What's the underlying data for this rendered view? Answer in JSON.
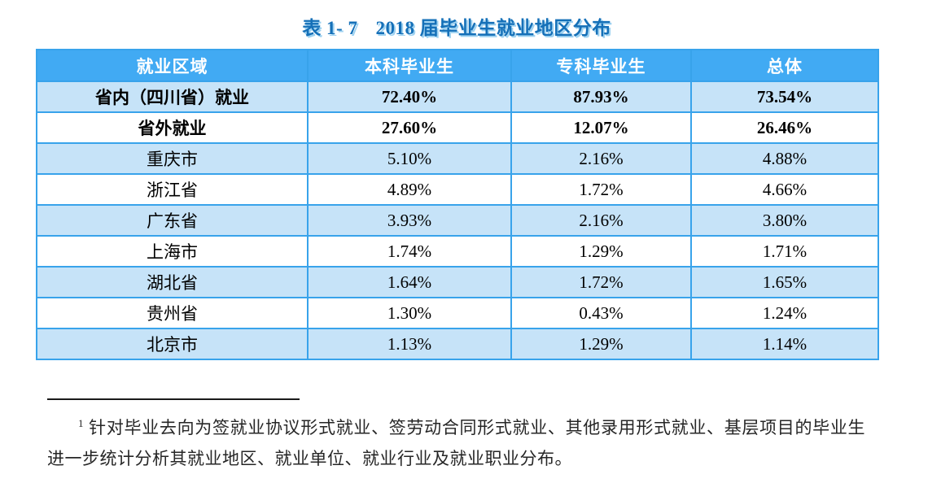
{
  "title": {
    "label": "表 1- 7",
    "text": "2018 届毕业生就业地区分布"
  },
  "table": {
    "headers": [
      "就业区域",
      "本科毕业生",
      "专科毕业生",
      "总体"
    ],
    "rows": [
      {
        "cells": [
          "省内（四川省）就业",
          "72.40%",
          "87.93%",
          "73.54%"
        ],
        "emphasis": true
      },
      {
        "cells": [
          "省外就业",
          "27.60%",
          "12.07%",
          "26.46%"
        ],
        "emphasis": true
      },
      {
        "cells": [
          "重庆市",
          "5.10%",
          "2.16%",
          "4.88%"
        ],
        "emphasis": false
      },
      {
        "cells": [
          "浙江省",
          "4.89%",
          "1.72%",
          "4.66%"
        ],
        "emphasis": false
      },
      {
        "cells": [
          "广东省",
          "3.93%",
          "2.16%",
          "3.80%"
        ],
        "emphasis": false
      },
      {
        "cells": [
          "上海市",
          "1.74%",
          "1.29%",
          "1.71%"
        ],
        "emphasis": false
      },
      {
        "cells": [
          "湖北省",
          "1.64%",
          "1.72%",
          "1.65%"
        ],
        "emphasis": false
      },
      {
        "cells": [
          "贵州省",
          "1.30%",
          "0.43%",
          "1.24%"
        ],
        "emphasis": false
      },
      {
        "cells": [
          "北京市",
          "1.13%",
          "1.29%",
          "1.14%"
        ],
        "emphasis": false
      }
    ]
  },
  "footnote": {
    "marker": "1",
    "text": "针对毕业去向为签就业协议形式就业、签劳动合同形式就业、其他录用形式就业、基层项目的毕业生进一步统计分析其就业地区、就业单位、就业行业及就业职业分布。"
  },
  "colors": {
    "header_bg": "#41aaf3",
    "row_shade_bg": "#c6e3f8",
    "border": "#38a3eb",
    "title": "#1570b8",
    "title_shadow": "#9ed2f1"
  }
}
